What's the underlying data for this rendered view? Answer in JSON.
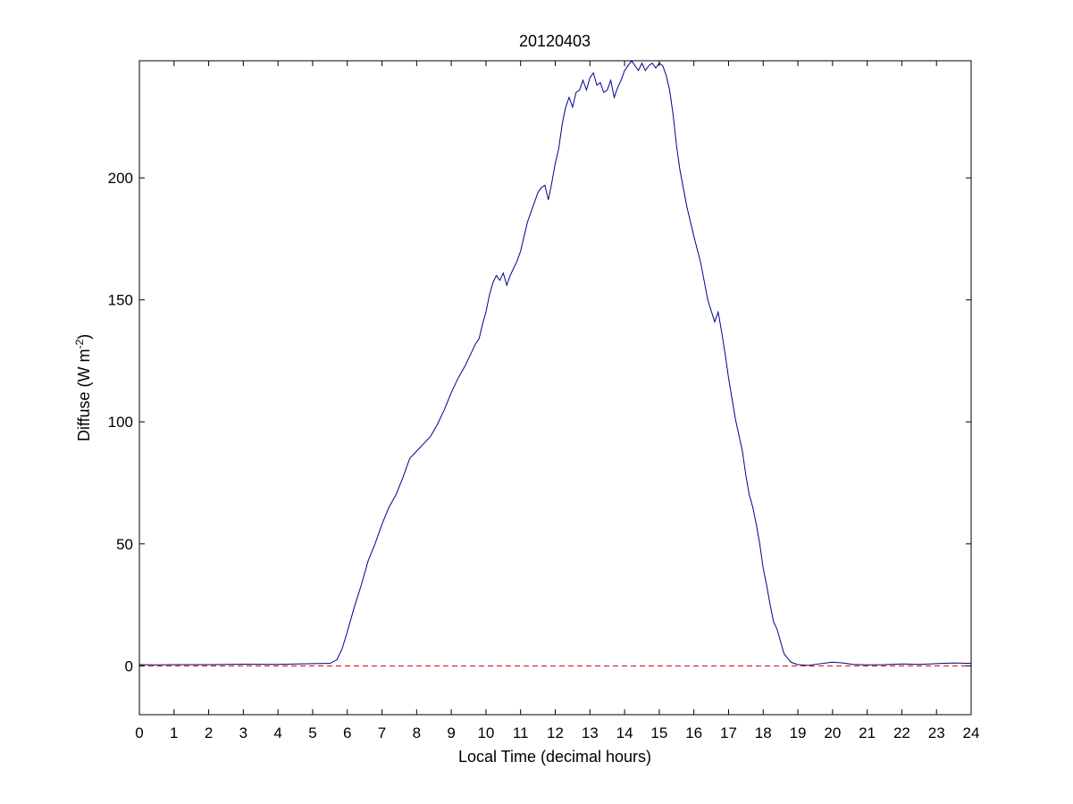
{
  "chart_data": {
    "type": "line",
    "title": "20120403",
    "xlabel": "Local Time (decimal hours)",
    "ylabel": {
      "prefix": "Diffuse (W m",
      "superscript": "-2",
      "suffix": ")"
    },
    "xlim": [
      0,
      24
    ],
    "ylim": [
      -20,
      248
    ],
    "xticks": [
      0,
      1,
      2,
      3,
      4,
      5,
      6,
      7,
      8,
      9,
      10,
      11,
      12,
      13,
      14,
      15,
      16,
      17,
      18,
      19,
      20,
      21,
      22,
      23,
      24
    ],
    "yticks": [
      0,
      50,
      100,
      150,
      200
    ],
    "grid": false,
    "colors": {
      "series": "#00008b",
      "reference": "#cc0000",
      "axes": "#000000"
    },
    "series": [
      {
        "style": "solid",
        "x": [
          0,
          0.5,
          1,
          2,
          3,
          4,
          4.5,
          5,
          5.5,
          5.7,
          5.85,
          6.0,
          6.2,
          6.4,
          6.6,
          6.8,
          7.0,
          7.2,
          7.4,
          7.6,
          7.8,
          8.0,
          8.2,
          8.4,
          8.6,
          8.8,
          9.0,
          9.2,
          9.4,
          9.6,
          9.7,
          9.8,
          9.9,
          10.0,
          10.1,
          10.2,
          10.3,
          10.4,
          10.5,
          10.6,
          10.7,
          10.8,
          10.9,
          11.0,
          11.1,
          11.2,
          11.3,
          11.4,
          11.5,
          11.6,
          11.7,
          11.8,
          11.9,
          12.0,
          12.1,
          12.2,
          12.3,
          12.4,
          12.5,
          12.6,
          12.7,
          12.8,
          12.9,
          13.0,
          13.1,
          13.2,
          13.3,
          13.4,
          13.5,
          13.6,
          13.7,
          13.8,
          13.9,
          14.0,
          14.1,
          14.2,
          14.3,
          14.4,
          14.5,
          14.6,
          14.7,
          14.8,
          14.9,
          15.0,
          15.1,
          15.2,
          15.3,
          15.4,
          15.5,
          15.6,
          15.8,
          16.0,
          16.2,
          16.4,
          16.6,
          16.7,
          16.8,
          16.9,
          17.0,
          17.2,
          17.4,
          17.5,
          17.6,
          17.7,
          17.8,
          17.9,
          18.0,
          18.1,
          18.2,
          18.3,
          18.4,
          18.6,
          18.8,
          19.0,
          19.3,
          19.6,
          20.0,
          20.3,
          20.6,
          21.0,
          21.5,
          22.0,
          22.5,
          23.0,
          23.5,
          24.0
        ],
        "y": [
          0.5,
          0.4,
          0.5,
          0.5,
          0.7,
          0.6,
          0.8,
          0.9,
          1.0,
          2.5,
          7,
          14,
          24,
          33,
          43,
          50,
          58,
          65,
          70,
          77,
          85,
          88,
          91,
          94,
          99,
          105,
          112,
          118,
          123,
          129,
          132,
          134,
          140,
          145,
          152,
          157,
          160,
          158,
          161,
          156,
          160,
          163,
          166,
          170,
          176,
          182,
          186,
          190,
          194,
          196,
          197,
          191,
          198,
          206,
          212,
          222,
          229,
          233,
          229,
          235,
          236,
          240,
          236,
          241,
          243,
          238,
          239,
          235,
          236,
          240,
          233,
          237,
          240,
          244,
          246,
          248,
          246,
          244,
          247,
          244,
          246,
          247,
          245,
          247,
          246,
          242,
          236,
          226,
          213,
          203,
          188,
          176,
          165,
          150,
          141,
          145,
          137,
          128,
          118,
          101,
          88,
          78,
          70,
          65,
          58,
          50,
          40,
          33,
          25,
          18,
          15,
          5,
          1.5,
          0.5,
          0.2,
          0.8,
          1.5,
          1.2,
          0.6,
          0.4,
          0.5,
          0.8,
          0.6,
          0.9,
          1.2,
          1.0
        ]
      },
      {
        "style": "dashed",
        "x": [
          0,
          24
        ],
        "y": [
          0,
          0
        ]
      }
    ]
  }
}
